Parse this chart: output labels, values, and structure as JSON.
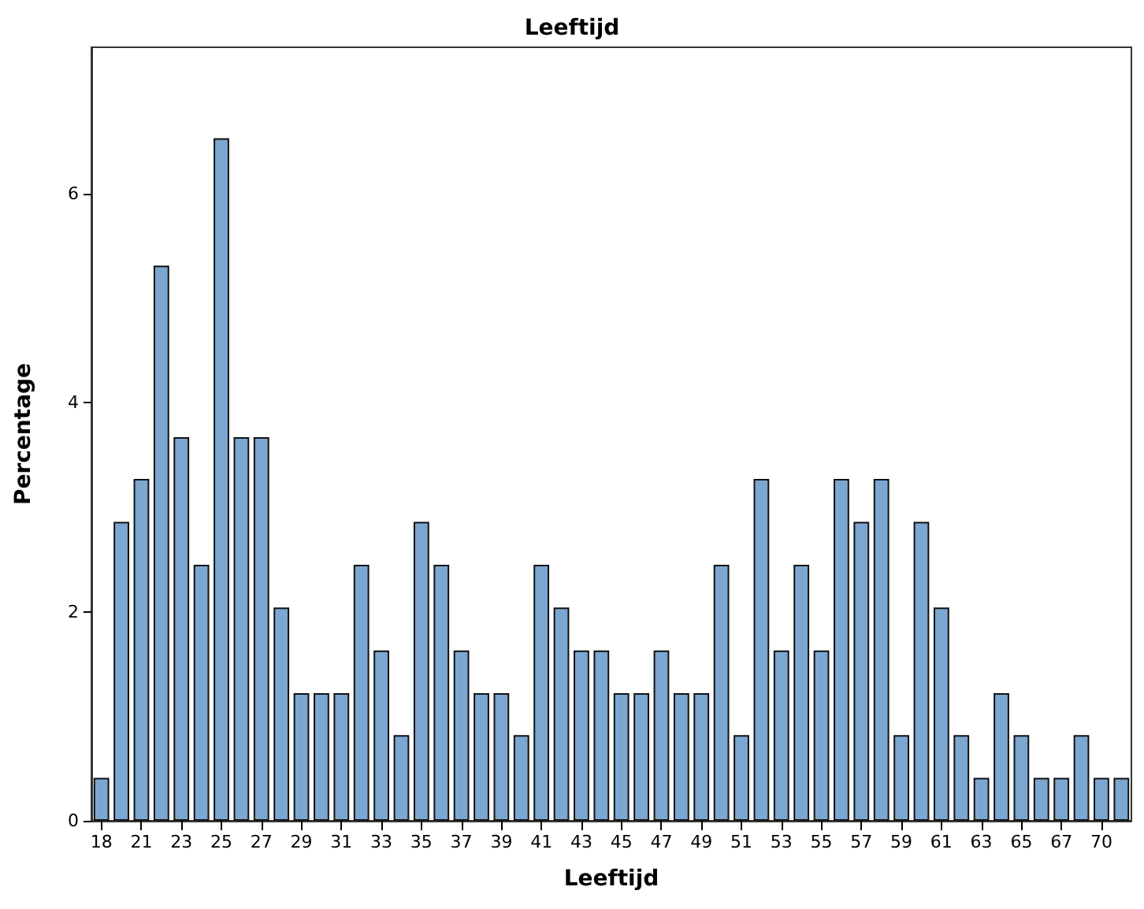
{
  "chart_data": {
    "type": "bar",
    "title": "Leeftijd",
    "xlabel": "Leeftijd",
    "ylabel": "Percentage",
    "categories": [
      "18",
      null,
      "21",
      null,
      "23",
      null,
      "25",
      null,
      "27",
      null,
      "29",
      null,
      "31",
      null,
      "33",
      null,
      "35",
      null,
      "37",
      null,
      "39",
      null,
      "41",
      null,
      "43",
      null,
      "45",
      null,
      "47",
      null,
      "49",
      null,
      "51",
      null,
      "53",
      null,
      "55",
      null,
      "57",
      null,
      "59",
      null,
      "61",
      null,
      "63",
      null,
      "65",
      null,
      "67",
      null,
      "70",
      null
    ],
    "values": [
      0.41,
      2.86,
      3.27,
      5.31,
      3.67,
      2.45,
      6.53,
      3.67,
      3.67,
      2.04,
      1.22,
      1.22,
      1.22,
      2.45,
      1.63,
      0.82,
      2.86,
      2.45,
      1.63,
      1.22,
      1.22,
      0.82,
      2.45,
      2.04,
      1.63,
      1.63,
      1.22,
      1.22,
      1.63,
      1.22,
      1.22,
      2.45,
      0.82,
      3.27,
      1.63,
      2.45,
      1.63,
      3.27,
      2.86,
      3.27,
      0.82,
      2.86,
      2.04,
      0.82,
      0.41,
      1.22,
      0.82,
      0.41,
      0.41,
      0.82,
      0.41,
      0.41
    ],
    "color": "#7ba7d1",
    "ylim": [
      0,
      7.4
    ],
    "yticks": [
      0,
      2,
      4,
      6
    ],
    "grid": false
  }
}
